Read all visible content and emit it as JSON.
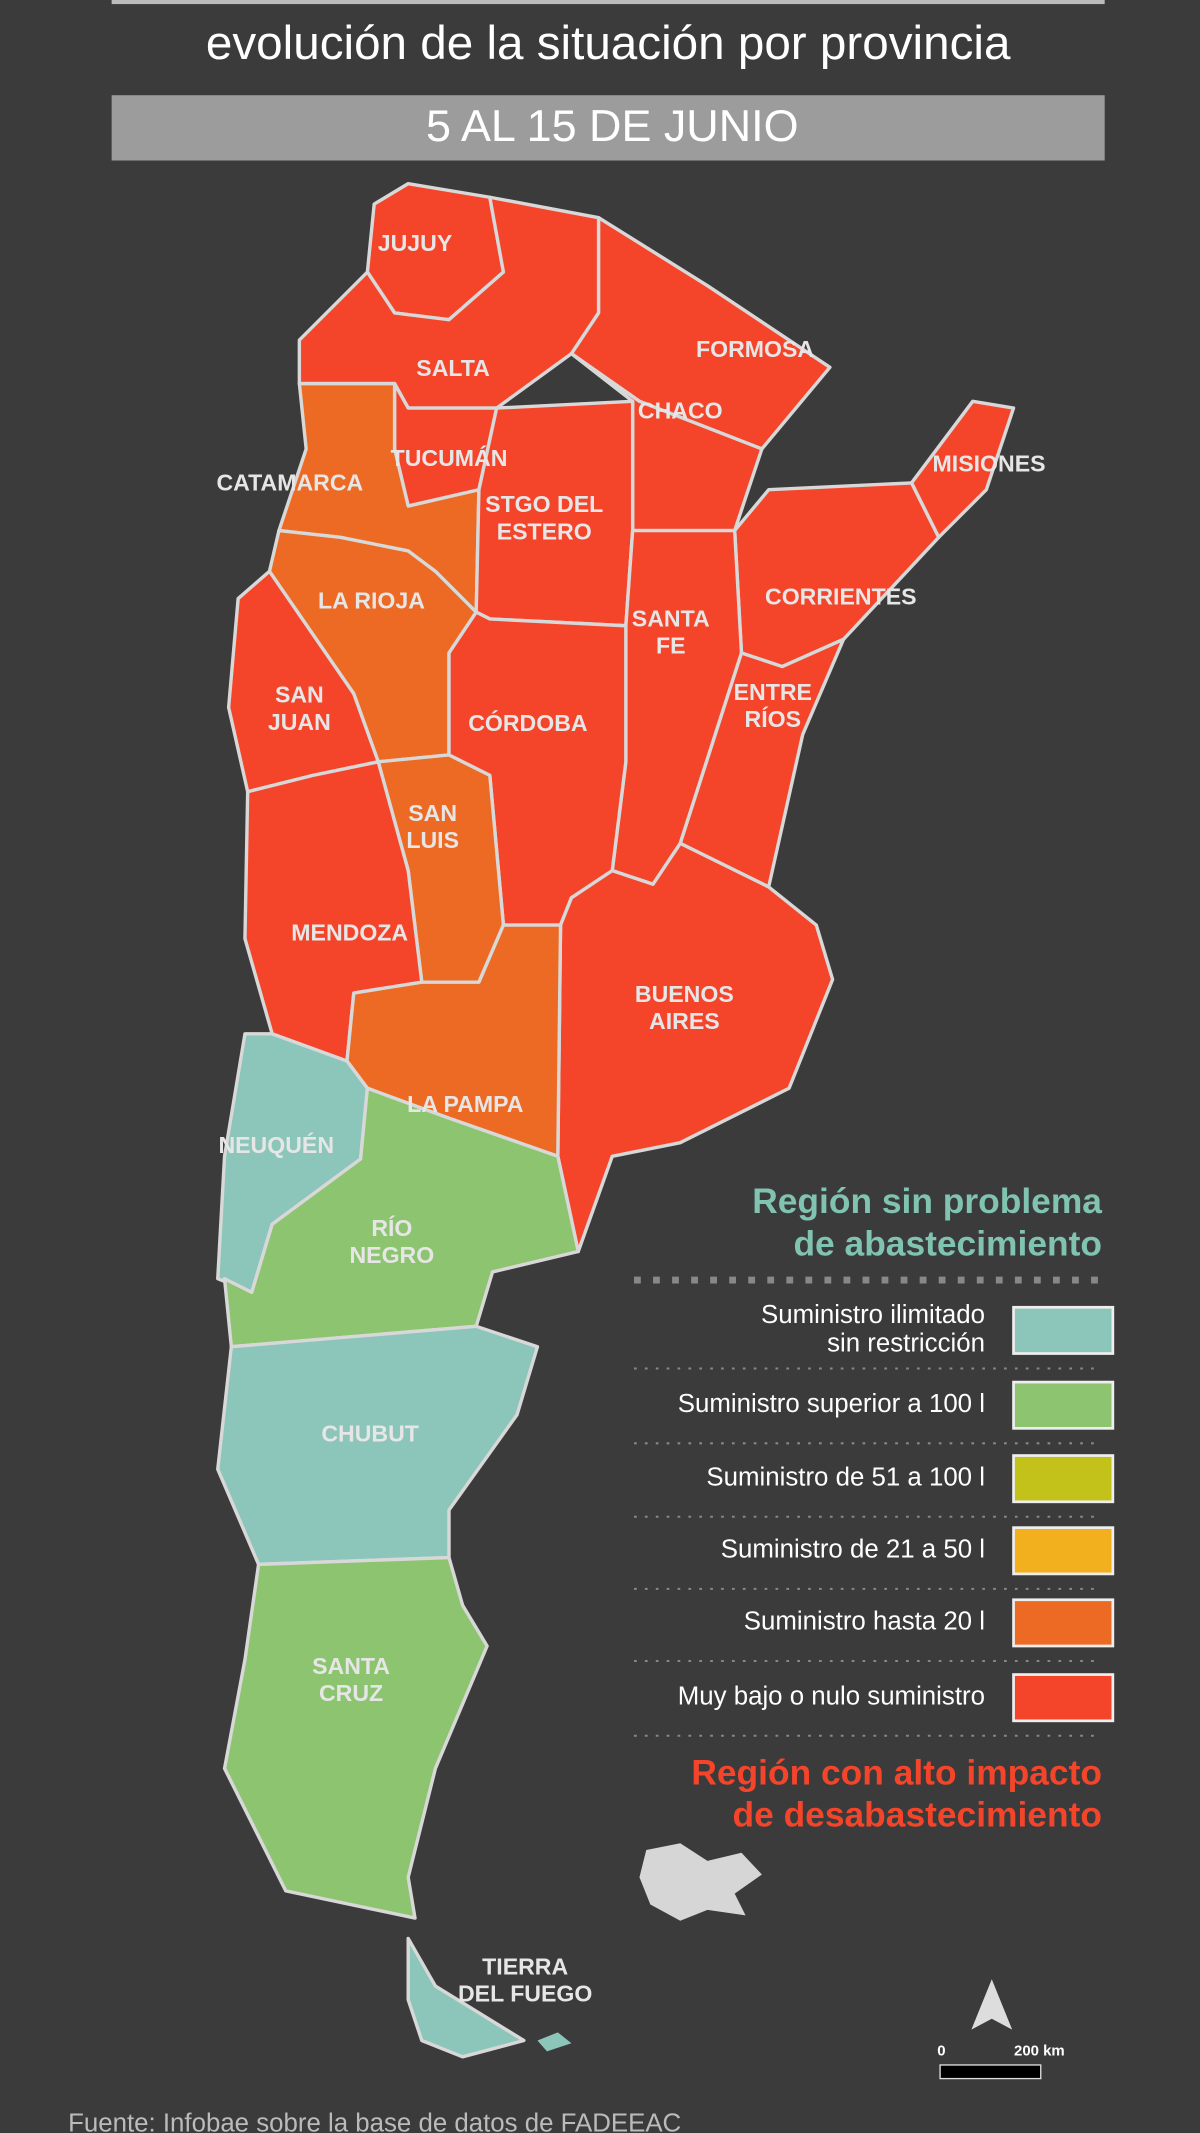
{
  "header": {
    "title": "evolución de la situación por provincia",
    "subtitle": "5 AL 15 DE JUNIO"
  },
  "map": {
    "provinces": [
      {
        "name_lines": [
          "JUJUY"
        ],
        "color": "#f4452b"
      },
      {
        "name_lines": [
          "SALTA"
        ],
        "color": "#f4452b"
      },
      {
        "name_lines": [
          "FORMOSA"
        ],
        "color": "#f4452b"
      },
      {
        "name_lines": [
          "CHACO"
        ],
        "color": "#f4452b"
      },
      {
        "name_lines": [
          "TUCUMÁN"
        ],
        "color": "#f4452b"
      },
      {
        "name_lines": [
          "CATAMARCA"
        ],
        "color": "#ec6a24"
      },
      {
        "name_lines": [
          "STGO DEL",
          "ESTERO"
        ],
        "color": "#f4452b"
      },
      {
        "name_lines": [
          "MISIONES"
        ],
        "color": "#f4452b"
      },
      {
        "name_lines": [
          "CORRIENTES"
        ],
        "color": "#f4452b"
      },
      {
        "name_lines": [
          "SANTA",
          "FE"
        ],
        "color": "#f4452b"
      },
      {
        "name_lines": [
          "ENTRE",
          "RÍOS"
        ],
        "color": "#f4452b"
      },
      {
        "name_lines": [
          "LA RIOJA"
        ],
        "color": "#ec6a24"
      },
      {
        "name_lines": [
          "SAN",
          "JUAN"
        ],
        "color": "#f4452b"
      },
      {
        "name_lines": [
          "CÓRDOBA"
        ],
        "color": "#f4452b"
      },
      {
        "name_lines": [
          "SAN",
          "LUIS"
        ],
        "color": "#ec6a24"
      },
      {
        "name_lines": [
          "MENDOZA"
        ],
        "color": "#f4452b"
      },
      {
        "name_lines": [
          "BUENOS",
          "AIRES"
        ],
        "color": "#f4452b"
      },
      {
        "name_lines": [
          "LA PAMPA"
        ],
        "color": "#ec6a24"
      },
      {
        "name_lines": [
          "NEUQUÉN"
        ],
        "color": "#8cc5b9"
      },
      {
        "name_lines": [
          "RÍO",
          "NEGRO"
        ],
        "color": "#8dc46f"
      },
      {
        "name_lines": [
          "CHUBUT"
        ],
        "color": "#8cc5b9"
      },
      {
        "name_lines": [
          "SANTA",
          "CRUZ"
        ],
        "color": "#8dc46f"
      },
      {
        "name_lines": [
          "TIERRA",
          "DEL FUEGO"
        ],
        "color": "#8cc5b9"
      }
    ]
  },
  "legend": {
    "top_heading": [
      "Región sin problema",
      "de abastecimiento"
    ],
    "items": [
      {
        "label_lines": [
          "Suministro ilimitado",
          "sin restricción"
        ],
        "color": "#8cc5b9"
      },
      {
        "label_lines": [
          "Suministro superior a 100 l"
        ],
        "color": "#8dc46f"
      },
      {
        "label_lines": [
          "Suministro de 51 a 100 l"
        ],
        "color": "#c2c21b"
      },
      {
        "label_lines": [
          "Suministro de 21 a 50 l"
        ],
        "color": "#f2b01e"
      },
      {
        "label_lines": [
          "Suministro hasta 20 l"
        ],
        "color": "#ec6a24"
      },
      {
        "label_lines": [
          "Muy bajo o nulo suministro"
        ],
        "color": "#f4452b"
      }
    ],
    "bottom_heading": [
      "Región con alto impacto",
      "de desabastecimiento"
    ]
  },
  "scale": {
    "start": "0",
    "end": "200 km"
  },
  "footer": {
    "source": "Fuente: Infobae sobre la base de datos de FADEEAC"
  }
}
